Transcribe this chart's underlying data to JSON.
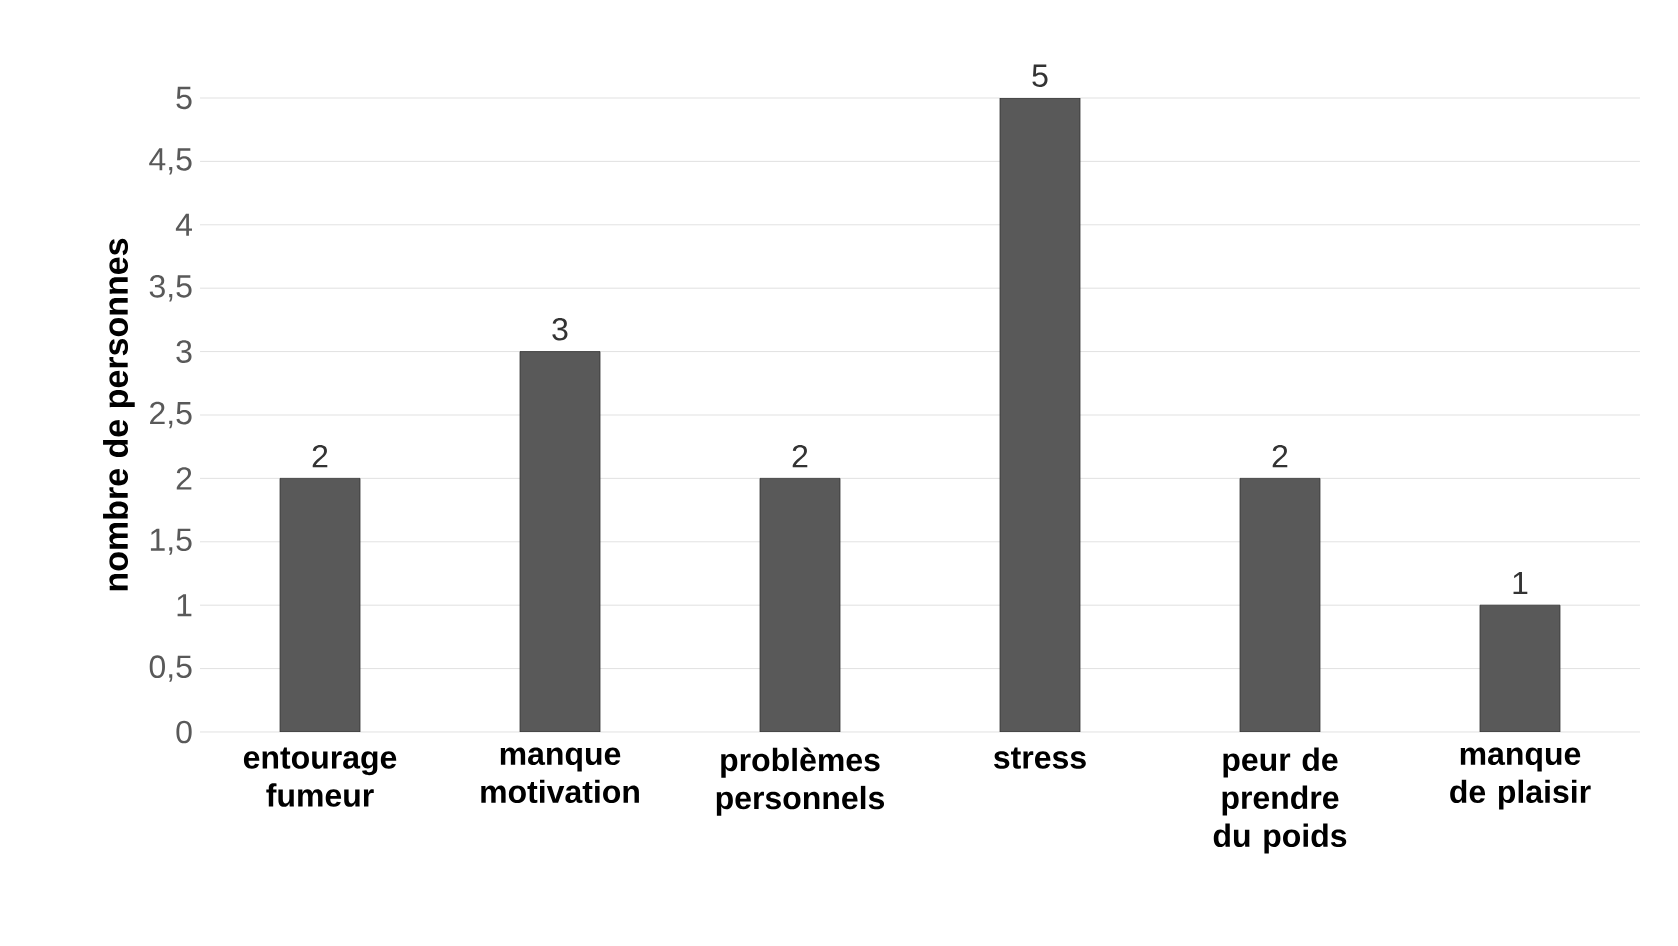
{
  "chart_data": {
    "type": "bar",
    "ylabel": "nombre de personnes",
    "categories": [
      "entourage fumeur",
      "manque motivation",
      "problèmes personnels",
      "stress",
      "peur de prendre du poids",
      "manque de plaisir"
    ],
    "values": [
      2,
      3,
      2,
      5,
      2,
      1
    ],
    "color": "#595959",
    "data_labels": true,
    "grid": "y",
    "ylim": [
      0,
      5
    ],
    "yticks": [
      0,
      {
        "value": 0.5,
        "label": "0,5"
      },
      1,
      {
        "value": 1.5,
        "label": "1,5"
      },
      2,
      {
        "value": 2.5,
        "label": "2,5"
      },
      3,
      {
        "value": 3.5,
        "label": "3,5"
      },
      4,
      {
        "value": 4.5,
        "label": "4,5"
      },
      5
    ]
  }
}
